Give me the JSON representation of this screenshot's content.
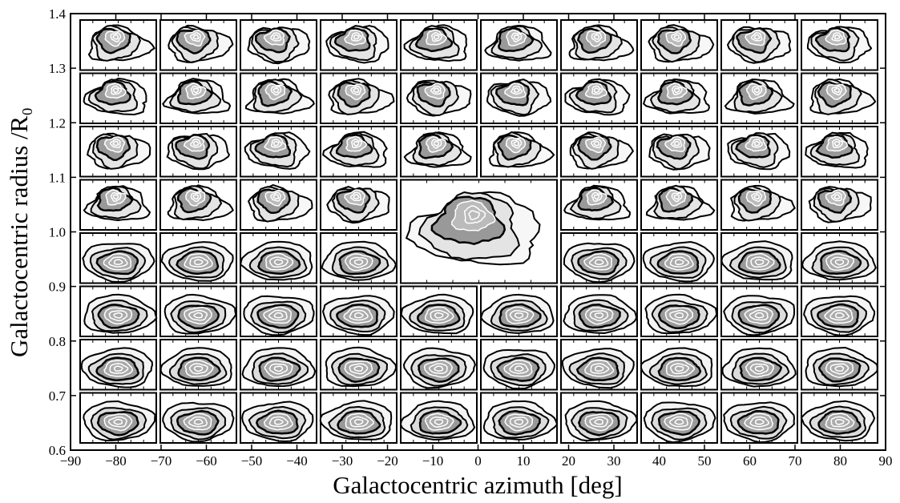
{
  "chart_data": {
    "type": "contour-grid",
    "xlabel": "Galactocentric azimuth [deg]",
    "ylabel": "Galactocentric radius /R₀",
    "xlim": [
      -90,
      90
    ],
    "ylim": [
      0.6,
      1.4
    ],
    "xticks": [
      {
        "value": -90,
        "label": "−90"
      },
      {
        "value": -80,
        "label": "−80"
      },
      {
        "value": -70,
        "label": "−70"
      },
      {
        "value": -60,
        "label": "−60"
      },
      {
        "value": -50,
        "label": "−50"
      },
      {
        "value": -40,
        "label": "−40"
      },
      {
        "value": -30,
        "label": "−30"
      },
      {
        "value": -20,
        "label": "−20"
      },
      {
        "value": -10,
        "label": "−10"
      },
      0,
      10,
      20,
      30,
      40,
      50,
      60,
      70,
      80,
      90
    ],
    "yticks": [
      0.6,
      0.7,
      0.8,
      0.9,
      {
        "value": 1,
        "label": "1.0"
      },
      1.1,
      1.2,
      1.3,
      1.4
    ]
  }
}
